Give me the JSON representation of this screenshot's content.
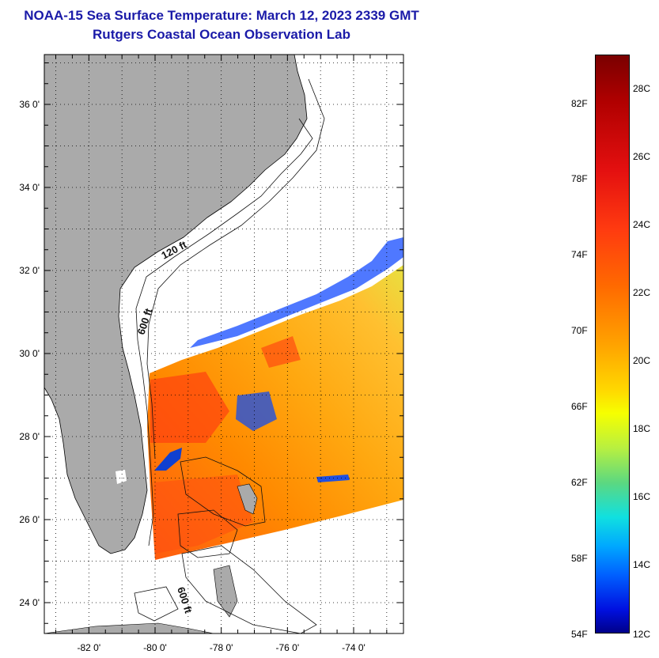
{
  "header": {
    "title": "NOAA-15 Sea Surface Temperature:  March 12, 2023 2339 GMT",
    "subtitle": "Rutgers Coastal Ocean Observation Lab"
  },
  "map": {
    "lat_ticks": [
      {
        "label": "36 0'",
        "lat": 36
      },
      {
        "label": "34 0'",
        "lat": 34
      },
      {
        "label": "32 0'",
        "lat": 32
      },
      {
        "label": "30 0'",
        "lat": 30
      },
      {
        "label": "28 0'",
        "lat": 28
      },
      {
        "label": "26 0'",
        "lat": 26
      },
      {
        "label": "24 0'",
        "lat": 24
      }
    ],
    "lon_ticks": [
      {
        "label": "-82 0'",
        "lon": -82
      },
      {
        "label": "-80 0'",
        "lon": -80
      },
      {
        "label": "-78 0'",
        "lon": -78
      },
      {
        "label": "-76 0'",
        "lon": -76
      },
      {
        "label": "-74 0'",
        "lon": -74
      }
    ],
    "contour_labels": [
      "120 ft",
      "600 ft",
      "600 ft"
    ],
    "land_color": "#aaaaaa"
  },
  "colorbar": {
    "fahrenheit": [
      "82F",
      "78F",
      "74F",
      "70F",
      "66F",
      "62F",
      "58F",
      "54F"
    ],
    "celsius": [
      "28C",
      "26C",
      "24C",
      "22C",
      "20C",
      "18C",
      "16C",
      "14C",
      "12C"
    ]
  }
}
